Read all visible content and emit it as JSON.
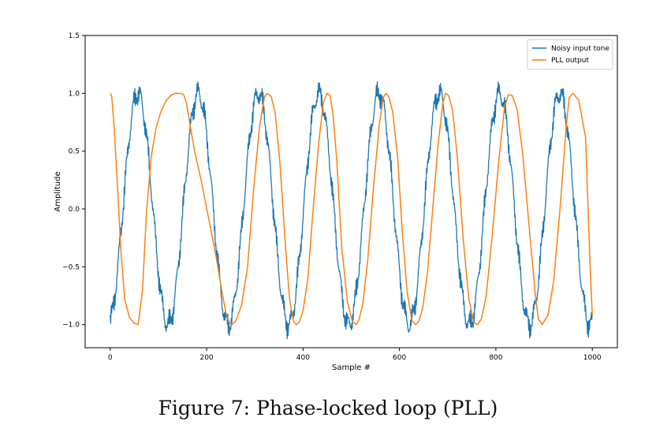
{
  "caption": "Figure 7: Phase-locked loop (PLL)",
  "chart_data": {
    "type": "line",
    "title": "",
    "xlabel": "Sample #",
    "ylabel": "Amplitude",
    "xlim": [
      -52,
      1052
    ],
    "ylim": [
      -1.2,
      1.5
    ],
    "xticks": [
      0,
      200,
      400,
      600,
      800,
      1000
    ],
    "xtick_labels": [
      "0",
      "200",
      "400",
      "600",
      "800",
      "1000"
    ],
    "yticks": [
      -1.0,
      -0.5,
      0.0,
      0.5,
      1.0,
      1.5
    ],
    "ytick_labels": [
      "−1.0",
      "−0.5",
      "0.0",
      "0.5",
      "1.0",
      "1.5"
    ],
    "grid": false,
    "legend_position": "top-right",
    "series": [
      {
        "name": "Noisy input tone",
        "color": "#1f77b4",
        "period": 125,
        "phase_offset": -5,
        "noise_amplitude": 0.09,
        "x": [
          0,
          10,
          20,
          30,
          40,
          50,
          60,
          70,
          80,
          90,
          100,
          110,
          120,
          130,
          140,
          150,
          160,
          170,
          180,
          190,
          200,
          210,
          220,
          230,
          240,
          250,
          260,
          270,
          280,
          290,
          300,
          310,
          320,
          330,
          340,
          350,
          360,
          370,
          380,
          390,
          400,
          410,
          420,
          430,
          440,
          450,
          460,
          470,
          480,
          490,
          500,
          510,
          520,
          530,
          540,
          550,
          560,
          570,
          580,
          590,
          600,
          610,
          620,
          630,
          640,
          650,
          660,
          670,
          680,
          690,
          700,
          710,
          720,
          730,
          740,
          750,
          760,
          770,
          780,
          790,
          800,
          810,
          820,
          830,
          840,
          850,
          860,
          870,
          880,
          890,
          900,
          910,
          920,
          930,
          940,
          950,
          960,
          970,
          980,
          990,
          1000
        ],
        "values": [
          -1.0,
          -0.92,
          -0.66,
          -0.33,
          0.05,
          0.48,
          0.85,
          0.98,
          0.94,
          0.68,
          0.3,
          -0.1,
          -0.48,
          -0.84,
          -0.98,
          -0.95,
          -0.68,
          -0.3,
          0.12,
          0.55,
          0.92,
          0.99,
          0.86,
          0.52,
          0.12,
          -0.3,
          -0.68,
          -0.95,
          -0.98,
          -0.78,
          -0.4,
          0.02,
          0.45,
          0.82,
          0.98,
          0.95,
          0.68,
          0.3,
          -0.1,
          -0.5,
          -0.86,
          -0.99,
          -0.93,
          -0.64,
          -0.24,
          0.18,
          0.58,
          0.92,
          0.99,
          0.85,
          0.5,
          0.1,
          -0.32,
          -0.72,
          -0.97,
          -0.98,
          -0.76,
          -0.36,
          0.06,
          0.48,
          0.85,
          0.99,
          0.93,
          0.66,
          0.26,
          -0.16,
          -0.56,
          -0.9,
          -0.99,
          -0.86,
          -0.52,
          -0.1,
          0.32,
          0.72,
          0.96,
          0.98,
          0.78,
          0.4,
          -0.04,
          -0.46,
          -0.84,
          -0.99,
          -0.92,
          -0.64,
          -0.24,
          0.2,
          0.6,
          0.92,
          0.99,
          0.84,
          0.5,
          0.08,
          -0.34,
          -0.74,
          -0.97,
          -0.97,
          -0.74,
          -0.36,
          0.08,
          0.5,
          -0.8
        ]
      },
      {
        "name": "PLL output",
        "color": "#ff7f0e",
        "x": [
          0,
          3,
          8,
          15,
          22,
          30,
          40,
          50,
          58,
          67,
          75,
          85,
          95,
          105,
          115,
          125,
          135,
          145,
          152,
          158,
          165,
          175,
          190,
          205,
          220,
          232,
          240,
          246,
          252,
          260,
          272,
          285,
          298,
          310,
          320,
          326,
          334,
          342,
          352,
          364,
          372,
          380,
          386,
          392,
          400,
          410,
          420,
          432,
          442,
          450,
          456,
          462,
          470,
          480,
          492,
          502,
          510,
          516,
          524,
          534,
          546,
          558,
          566,
          572,
          578,
          586,
          596,
          606,
          616,
          626,
          634,
          640,
          648,
          658,
          668,
          680,
          690,
          696,
          702,
          710,
          720,
          732,
          744,
          754,
          762,
          770,
          780,
          792,
          806,
          818,
          826,
          834,
          844,
          856,
          870,
          882,
          888,
          896,
          908,
          920,
          934,
          946,
          952,
          960,
          972,
          986,
          996,
          1000
        ],
        "values": [
          1.0,
          0.98,
          0.72,
          0.2,
          -0.35,
          -0.78,
          -0.94,
          -0.99,
          -1.0,
          -0.7,
          -0.05,
          0.45,
          0.7,
          0.84,
          0.93,
          0.98,
          1.0,
          1.0,
          0.99,
          0.92,
          0.74,
          0.5,
          0.22,
          -0.1,
          -0.42,
          -0.72,
          -0.9,
          -0.98,
          -1.0,
          -0.97,
          -0.84,
          -0.5,
          0.2,
          0.72,
          0.97,
          1.0,
          0.97,
          0.84,
          0.4,
          -0.35,
          -0.78,
          -0.97,
          -1.0,
          -0.98,
          -0.88,
          -0.6,
          -0.05,
          0.55,
          0.92,
          1.0,
          0.98,
          0.82,
          0.42,
          -0.32,
          -0.8,
          -0.97,
          -1.0,
          -0.96,
          -0.82,
          -0.45,
          0.18,
          0.72,
          0.96,
          1.0,
          0.97,
          0.84,
          0.45,
          -0.2,
          -0.72,
          -0.97,
          -1.0,
          -0.97,
          -0.86,
          -0.56,
          -0.05,
          0.55,
          0.92,
          1.0,
          0.98,
          0.86,
          0.45,
          -0.25,
          -0.78,
          -0.98,
          -1.0,
          -0.95,
          -0.75,
          -0.25,
          0.42,
          0.88,
          0.99,
          0.98,
          0.86,
          0.46,
          -0.2,
          -0.75,
          -0.95,
          -1.0,
          -0.92,
          -0.62,
          0.05,
          0.72,
          0.96,
          1.0,
          0.94,
          0.62,
          -0.55,
          -0.92
        ]
      }
    ]
  }
}
